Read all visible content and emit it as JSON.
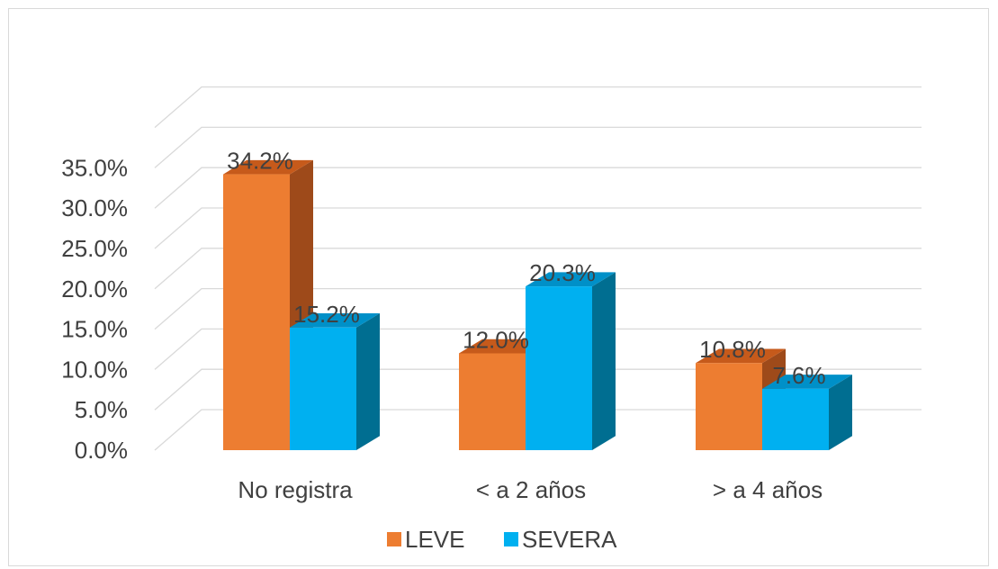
{
  "chart_data": {
    "type": "bar",
    "categories": [
      "No registra",
      "< a 2 años",
      "> a 4 años"
    ],
    "series": [
      {
        "name": "LEVE",
        "values": [
          34.2,
          12.0,
          10.8
        ],
        "labels": [
          "34.2%",
          "12.0%",
          "10.8%"
        ],
        "color": "#ED7D31",
        "top_color": "#C65A1B",
        "side_color": "#9E4A1A"
      },
      {
        "name": "SEVERA",
        "values": [
          15.2,
          20.3,
          7.6
        ],
        "labels": [
          "15.2%",
          "20.3%",
          "7.6%"
        ],
        "color": "#00B0F0",
        "top_color": "#0090C8",
        "side_color": "#006E91"
      }
    ],
    "yticks": [
      "0.0%",
      "5.0%",
      "10.0%",
      "15.0%",
      "20.0%",
      "25.0%",
      "30.0%",
      "35.0%"
    ],
    "ylim": [
      0,
      35
    ],
    "grid": true,
    "legend_position": "bottom",
    "title": "",
    "xlabel": "",
    "ylabel": ""
  }
}
